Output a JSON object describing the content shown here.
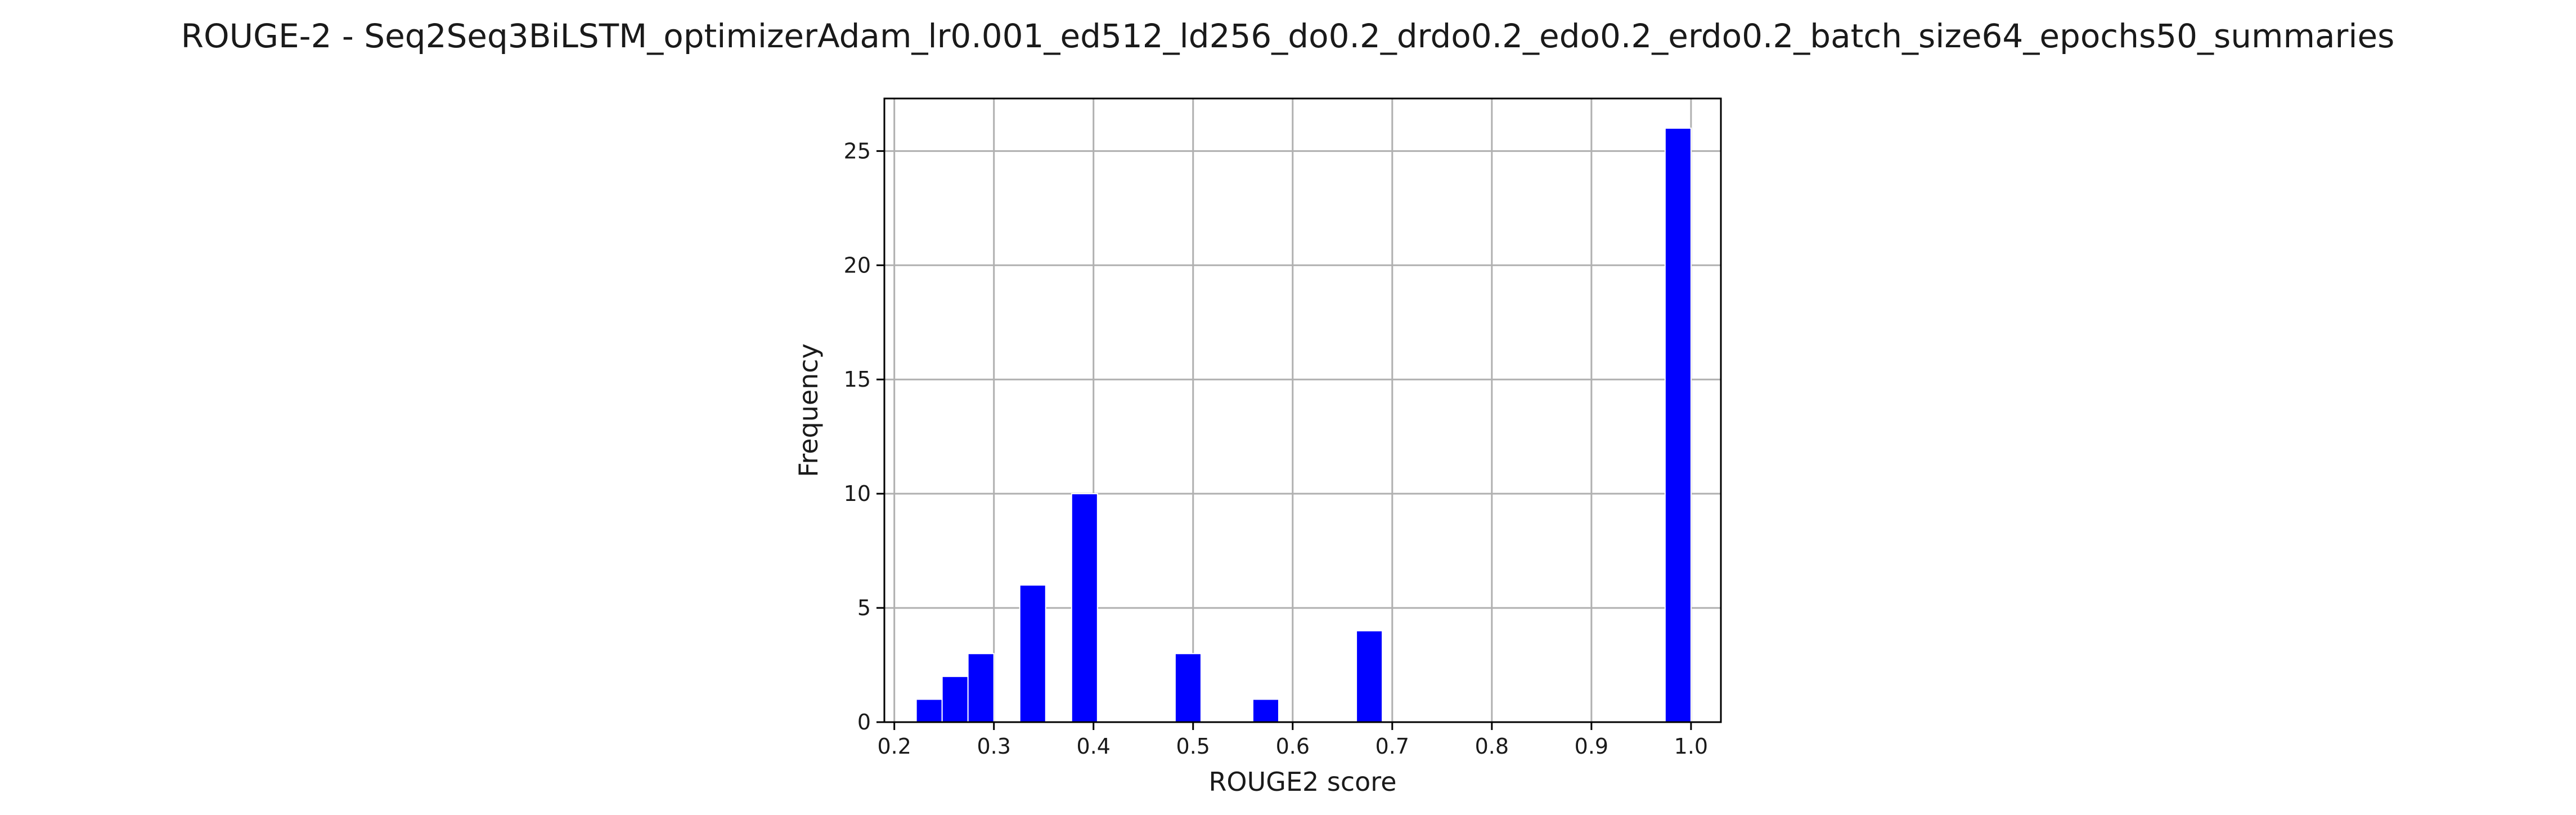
{
  "chart_data": {
    "type": "bar",
    "subtype": "histogram",
    "title": "ROUGE-2 - Seq2Seq3BiLSTM_optimizerAdam_lr0.001_ed512_ld256_do0.2_drdo0.2_edo0.2_erdo0.2_batch_size64_epochs50_summaries",
    "xlabel": "ROUGE2 score",
    "ylabel": "Frequency",
    "xlim": [
      0.19,
      1.03
    ],
    "ylim": [
      0,
      27.3
    ],
    "xticks": [
      0.2,
      0.3,
      0.4,
      0.5,
      0.6,
      0.7,
      0.8,
      0.9,
      1.0
    ],
    "xtick_labels": [
      "0.2",
      "0.3",
      "0.4",
      "0.5",
      "0.6",
      "0.7",
      "0.8",
      "0.9",
      "1.0"
    ],
    "yticks": [
      0,
      5,
      10,
      15,
      20,
      25
    ],
    "ytick_labels": [
      "0",
      "5",
      "10",
      "15",
      "20",
      "25"
    ],
    "grid": true,
    "bar_color": "#0000ff",
    "bins": [
      {
        "x0": 0.222,
        "x1": 0.248,
        "count": 1
      },
      {
        "x0": 0.248,
        "x1": 0.274,
        "count": 2
      },
      {
        "x0": 0.274,
        "x1": 0.3,
        "count": 3
      },
      {
        "x0": 0.326,
        "x1": 0.352,
        "count": 6
      },
      {
        "x0": 0.378,
        "x1": 0.404,
        "count": 10
      },
      {
        "x0": 0.482,
        "x1": 0.508,
        "count": 3
      },
      {
        "x0": 0.56,
        "x1": 0.586,
        "count": 1
      },
      {
        "x0": 0.664,
        "x1": 0.69,
        "count": 4
      },
      {
        "x0": 0.974,
        "x1": 1.0,
        "count": 26
      }
    ]
  }
}
